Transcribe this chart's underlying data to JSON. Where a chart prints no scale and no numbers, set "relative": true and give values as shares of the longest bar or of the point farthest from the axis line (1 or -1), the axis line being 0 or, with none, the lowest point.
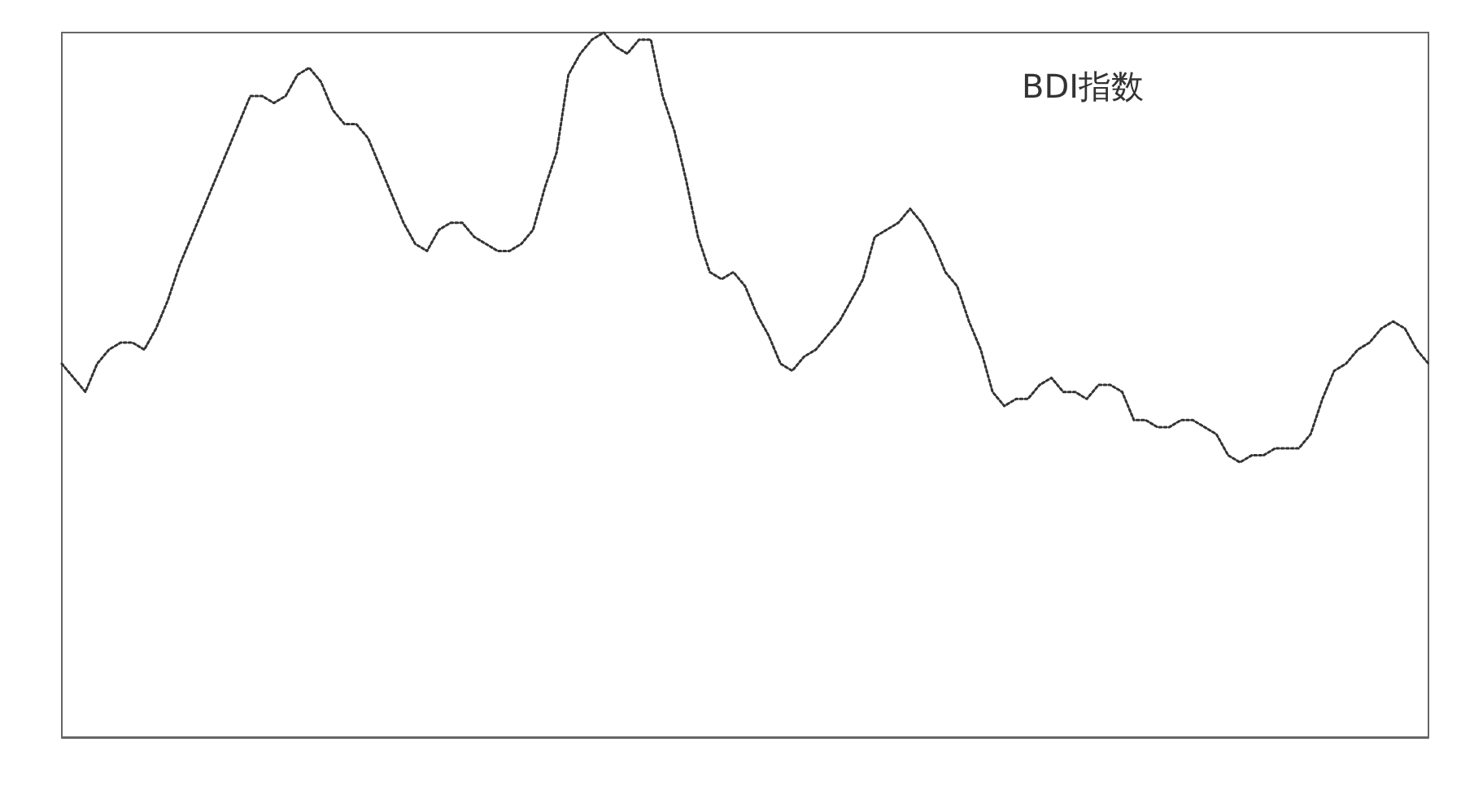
{
  "chart_data": {
    "type": "line",
    "title": "BDI指数",
    "relative": true,
    "line_style": "dotted",
    "categories": [
      null,
      null,
      null,
      null,
      null,
      null,
      null,
      null,
      null,
      null,
      null,
      null,
      null,
      null,
      null,
      null,
      null,
      null,
      null,
      null,
      null,
      null,
      null,
      null,
      null,
      null,
      null,
      null,
      null,
      null,
      null,
      null,
      null,
      null,
      null,
      null,
      null,
      null,
      null,
      null,
      null,
      null,
      null,
      null,
      null,
      null,
      null,
      null,
      null,
      null,
      null,
      null,
      null,
      null,
      null,
      null,
      null,
      null,
      null,
      null,
      null,
      null,
      null,
      null,
      null,
      null,
      null,
      null,
      null,
      null,
      null,
      null,
      null,
      null,
      null,
      null,
      null,
      null,
      null,
      null,
      null,
      null,
      null,
      null,
      null,
      null,
      null,
      null,
      null,
      null,
      null,
      null,
      null,
      null,
      null,
      null,
      null,
      null,
      null,
      null,
      null,
      null,
      null,
      null,
      null,
      null,
      null,
      null,
      null,
      null,
      null,
      null,
      null,
      null,
      null,
      null,
      null
    ],
    "series": [
      {
        "color": "#333333",
        "values": [
          0.53,
          0.51,
          0.49,
          0.53,
          0.55,
          0.56,
          0.56,
          0.55,
          0.58,
          0.62,
          0.67,
          0.71,
          0.75,
          0.79,
          0.83,
          0.87,
          0.91,
          0.91,
          0.9,
          0.91,
          0.94,
          0.95,
          0.93,
          0.89,
          0.87,
          0.87,
          0.85,
          0.81,
          0.77,
          0.73,
          0.7,
          0.69,
          0.72,
          0.73,
          0.73,
          0.71,
          0.7,
          0.69,
          0.69,
          0.7,
          0.72,
          0.78,
          0.83,
          0.94,
          0.97,
          0.99,
          1,
          0.98,
          0.97,
          0.99,
          0.99,
          0.91,
          0.86,
          0.79,
          0.71,
          0.66,
          0.65,
          0.66,
          0.64,
          0.6,
          0.57,
          0.53,
          0.52,
          0.54,
          0.55,
          0.57,
          0.59,
          0.62,
          0.65,
          0.71,
          0.72,
          0.73,
          0.75,
          0.73,
          0.7,
          0.66,
          0.64,
          0.59,
          0.55,
          0.49,
          0.47,
          0.48,
          0.48,
          0.5,
          0.51,
          0.49,
          0.49,
          0.48,
          0.5,
          0.5,
          0.49,
          0.45,
          0.45,
          0.44,
          0.44,
          0.45,
          0.45,
          0.44,
          0.43,
          0.4,
          0.39,
          0.4,
          0.4,
          0.41,
          0.41,
          0.41,
          0.43,
          0.48,
          0.52,
          0.53,
          0.55,
          0.56,
          0.58,
          0.59,
          0.58,
          0.55,
          0.53
        ]
      }
    ]
  }
}
